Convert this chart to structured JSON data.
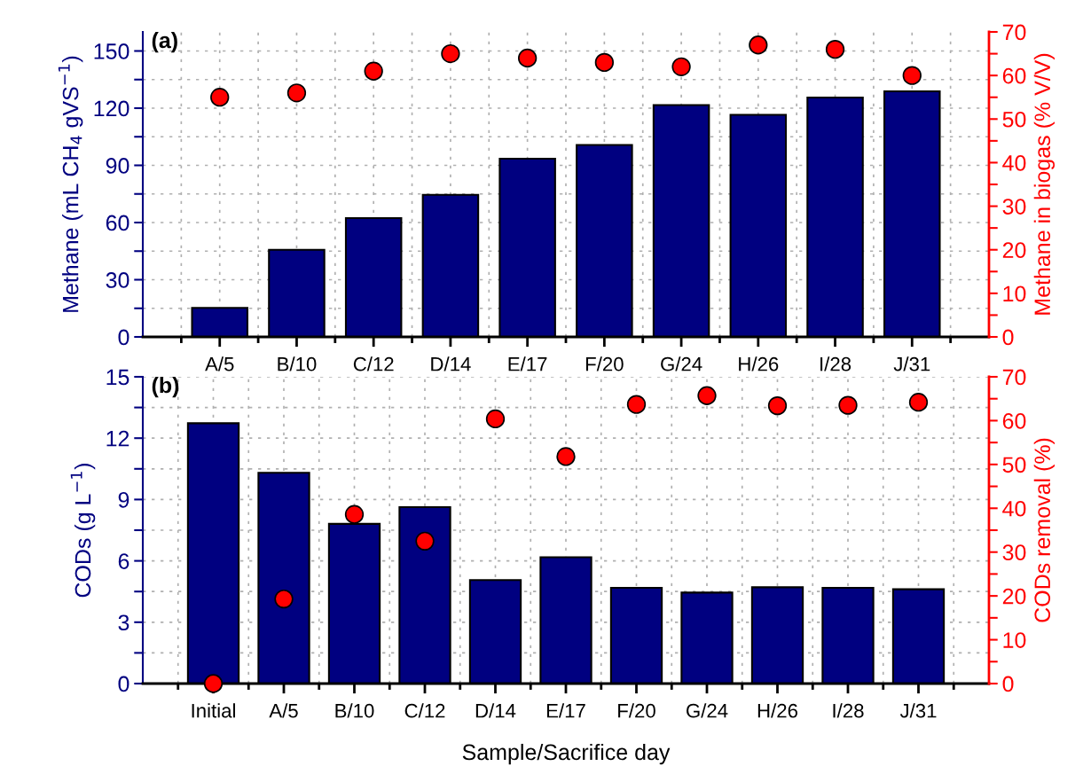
{
  "chart_data": [
    {
      "type": "bar",
      "title": "(a)",
      "ylabel": "Methane (mL CH$_{4}$ gVS$^{−1}$)",
      "y2label": "Methane in biogas (% V/V)",
      "categories": [
        "A/5",
        "B/10",
        "C/12",
        "D/14",
        "E/17",
        "F/20",
        "G/24",
        "H/26",
        "I/28",
        "J/31"
      ],
      "series": [
        {
          "type": "bar",
          "color": "#000080",
          "values": [
            15.2,
            45.7,
            62.3,
            74.5,
            93.5,
            100.7,
            121.6,
            116.5,
            125.6,
            128.8
          ]
        },
        {
          "type": "scatter",
          "axis": "y2",
          "color": "#ff0000",
          "marker": "circle",
          "values": [
            55,
            56,
            61,
            65,
            64,
            63,
            62,
            67,
            66,
            60
          ]
        }
      ],
      "ylim": [
        0,
        160
      ],
      "yticks": [
        0,
        {
          "value": 15,
          "label": null
        },
        30,
        {
          "value": 45,
          "label": null
        },
        60,
        {
          "value": 75,
          "label": null
        },
        90,
        {
          "value": 105,
          "label": null
        },
        120,
        {
          "value": 135,
          "label": null
        },
        150
      ],
      "y2lim": [
        0,
        70
      ],
      "y2ticks": [
        0,
        {
          "value": 5,
          "label": null
        },
        10,
        {
          "value": 15,
          "label": null
        },
        20,
        {
          "value": 25,
          "label": null
        },
        30,
        {
          "value": 35,
          "label": null
        },
        40,
        {
          "value": 45,
          "label": null
        },
        50,
        {
          "value": 55,
          "label": null
        },
        60,
        {
          "value": 65,
          "label": null
        },
        70
      ],
      "grid": true
    },
    {
      "type": "bar",
      "title": "(b)",
      "xlabel": "Sample/Sacrifice day",
      "ylabel": "CODs (g L$^{−1}$)",
      "y2label": "CODs removal (%)",
      "categories": [
        "Initial",
        "A/5",
        "B/10",
        "C/12",
        "D/14",
        "E/17",
        "F/20",
        "G/24",
        "H/26",
        "I/28",
        "J/31"
      ],
      "series": [
        {
          "type": "bar",
          "color": "#000080",
          "values": [
            12.73,
            10.31,
            7.81,
            8.63,
            5.06,
            6.18,
            4.68,
            4.45,
            4.71,
            4.68,
            4.61
          ]
        },
        {
          "type": "scatter",
          "axis": "y2",
          "color": "#ff0000",
          "marker": "circle",
          "values": [
            0,
            19.3,
            38.6,
            32.5,
            60.4,
            51.8,
            63.7,
            65.7,
            63.4,
            63.5,
            64.2
          ]
        }
      ],
      "ylim": [
        0,
        15
      ],
      "yticks": [
        0,
        {
          "value": 1.5,
          "label": null
        },
        3,
        {
          "value": 4.5,
          "label": null
        },
        6,
        {
          "value": 7.5,
          "label": null
        },
        9,
        {
          "value": 10.5,
          "label": null
        },
        12,
        {
          "value": 13.5,
          "label": null
        },
        15
      ],
      "y2lim": [
        0,
        70
      ],
      "y2ticks": [
        0,
        {
          "value": 5,
          "label": null
        },
        10,
        {
          "value": 15,
          "label": null
        },
        20,
        {
          "value": 25,
          "label": null
        },
        30,
        {
          "value": 35,
          "label": null
        },
        40,
        {
          "value": 45,
          "label": null
        },
        50,
        {
          "value": 55,
          "label": null
        },
        60,
        {
          "value": 65,
          "label": null
        },
        70
      ],
      "grid": true
    }
  ]
}
